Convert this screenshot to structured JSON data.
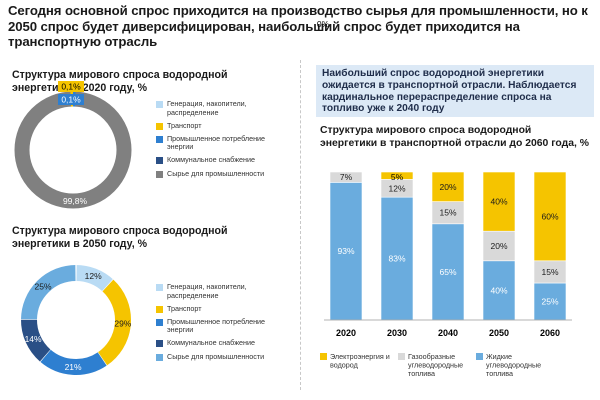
{
  "headline": "Сегодня основной спрос приходится на производство сырья для промышленности, но к 2050 спрос будет диверсифицирован, наибольший спрос будет приходится на транспортную отрасль",
  "colors": {
    "generation": "#b9dbf4",
    "transport": "#f5c400",
    "industrial_energy": "#2e7fd0",
    "utilities": "#2a4f86",
    "feedstock": "#808080",
    "feedstock_2050": "#6aacde",
    "electricity": "#f5c400",
    "gaseous": "#d9d9d9",
    "liquid": "#6aacde"
  },
  "callout": {
    "text": "Наибольший спрос водородной энергетики ожидается в транспортной отрасли. Наблюдается кардинальное перераспределение спроса на топливо уже к 2040 году"
  },
  "chart_data": [
    {
      "type": "pie",
      "subtype": "donut",
      "title": "Структура мирового спроса водородной энергетики в 2020 году, %",
      "categories": [
        "Генерация, накопители, распределение",
        "Транспорт",
        "Промышленное потребление энергии",
        "Коммунальное снабжение",
        "Сырье для промышленности"
      ],
      "values": [
        0,
        0.1,
        0.1,
        0,
        99.8
      ],
      "labels": [
        "",
        "0,1%",
        "0,1%",
        "",
        "99,8%"
      ],
      "colors": [
        "#b9dbf4",
        "#f5c400",
        "#2e7fd0",
        "#2a4f86",
        "#808080"
      ],
      "legend": "right"
    },
    {
      "type": "pie",
      "subtype": "donut",
      "title": "Структура мирового спроса водородной энергетики в 2050 году, %",
      "categories": [
        "Генерация, накопители, распределение",
        "Транспорт",
        "Промышленное потребление энергии",
        "Коммунальное снабжение",
        "Сырье для промышленности"
      ],
      "values": [
        12,
        29,
        21,
        14,
        25
      ],
      "labels": [
        "12%",
        "29%",
        "21%",
        "14%",
        "25%"
      ],
      "colors": [
        "#b9dbf4",
        "#f5c400",
        "#2e7fd0",
        "#2a4f86",
        "#6aacde"
      ],
      "legend": "right"
    },
    {
      "type": "bar",
      "stacked": true,
      "percent": true,
      "title": "Структура мирового спроса водородной энергетики в транспортной отрасли до 2060 года, %",
      "categories": [
        "2020",
        "2030",
        "2040",
        "2050",
        "2060"
      ],
      "series": [
        {
          "name": "Жидкие углеводородные топлива",
          "values": [
            93,
            83,
            65,
            40,
            25
          ],
          "labels": [
            "93%",
            "83%",
            "65%",
            "40%",
            "25%"
          ],
          "color": "#6aacde"
        },
        {
          "name": "Газообразные углеводородные топлива",
          "values": [
            7,
            12,
            15,
            20,
            15
          ],
          "labels": [
            "7%",
            "12%",
            "15%",
            "20%",
            "15%"
          ],
          "color": "#d9d9d9"
        },
        {
          "name": "Электроэнергия и водород",
          "values": [
            0,
            5,
            20,
            40,
            60
          ],
          "labels": [
            "0%",
            "5%",
            "20%",
            "40%",
            "60%"
          ],
          "color": "#f5c400"
        }
      ],
      "legend_order": [
        "Электроэнергия и водород",
        "Газообразные углеводородные топлива",
        "Жидкие углеводородные топлива"
      ],
      "ylim": [
        0,
        100
      ],
      "legend": "bottom"
    }
  ]
}
